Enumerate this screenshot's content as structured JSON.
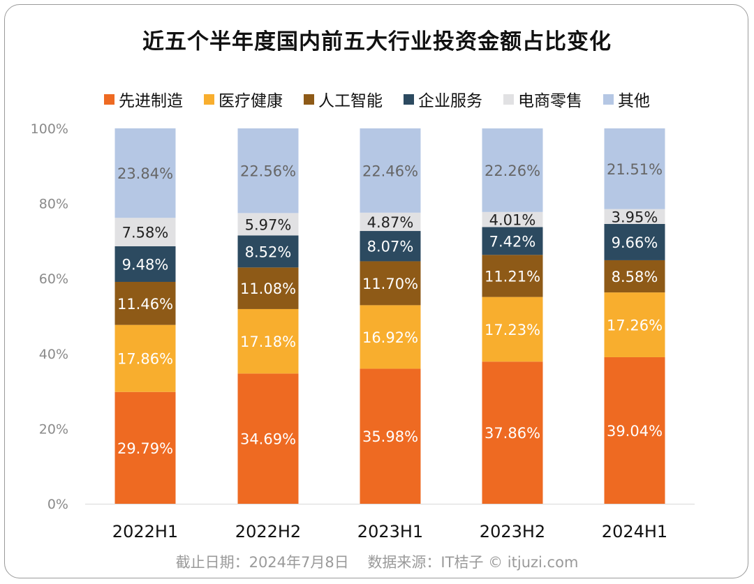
{
  "chart_data": {
    "type": "bar",
    "stacked": true,
    "title": "近五个半年度国内前五大行业投资金额占比变化",
    "categories": [
      "2022H1",
      "2022H2",
      "2023H1",
      "2023H2",
      "2024H1"
    ],
    "ylim": [
      0,
      100
    ],
    "yticks": [
      "0%",
      "20%",
      "40%",
      "60%",
      "80%",
      "100%"
    ],
    "ytick_values": [
      0,
      20,
      40,
      60,
      80,
      100
    ],
    "legend_position": "top",
    "series": [
      {
        "name": "先进制造",
        "color": "#EE6A22",
        "label_color": "#ffffff",
        "values": [
          29.79,
          34.69,
          35.98,
          37.86,
          39.04
        ],
        "labels": [
          "29.79%",
          "34.69%",
          "35.98%",
          "37.86%",
          "39.04%"
        ]
      },
      {
        "name": "医疗健康",
        "color": "#F8AE2E",
        "label_color": "#ffffff",
        "values": [
          17.86,
          17.18,
          16.92,
          17.23,
          17.26
        ],
        "labels": [
          "17.86%",
          "17.18%",
          "16.92%",
          "17.23%",
          "17.26%"
        ]
      },
      {
        "name": "人工智能",
        "color": "#8E5A17",
        "label_color": "#ffffff",
        "values": [
          11.46,
          11.08,
          11.7,
          11.21,
          8.58
        ],
        "labels": [
          "11.46%",
          "11.08%",
          "11.70%",
          "11.21%",
          "8.58%"
        ]
      },
      {
        "name": "企业服务",
        "color": "#2C4A60",
        "label_color": "#ffffff",
        "values": [
          9.48,
          8.52,
          8.07,
          7.42,
          9.66
        ],
        "labels": [
          "9.48%",
          "8.52%",
          "8.07%",
          "7.42%",
          "9.66%"
        ]
      },
      {
        "name": "电商零售",
        "color": "#E1E1E3",
        "label_color": "#222222",
        "values": [
          7.58,
          5.97,
          4.87,
          4.01,
          3.95
        ],
        "labels": [
          "7.58%",
          "5.97%",
          "4.87%",
          "4.01%",
          "3.95%"
        ]
      },
      {
        "name": "其他",
        "color": "#B5C7E4",
        "label_color": "#666666",
        "values": [
          23.84,
          22.56,
          22.46,
          22.26,
          21.51
        ],
        "labels": [
          "23.84%",
          "22.56%",
          "22.46%",
          "22.26%",
          "21.51%"
        ]
      }
    ]
  },
  "footer": {
    "date": "截止日期：2024年7月8日",
    "source": "数据来源：IT桔子 © itjuzi.com"
  }
}
